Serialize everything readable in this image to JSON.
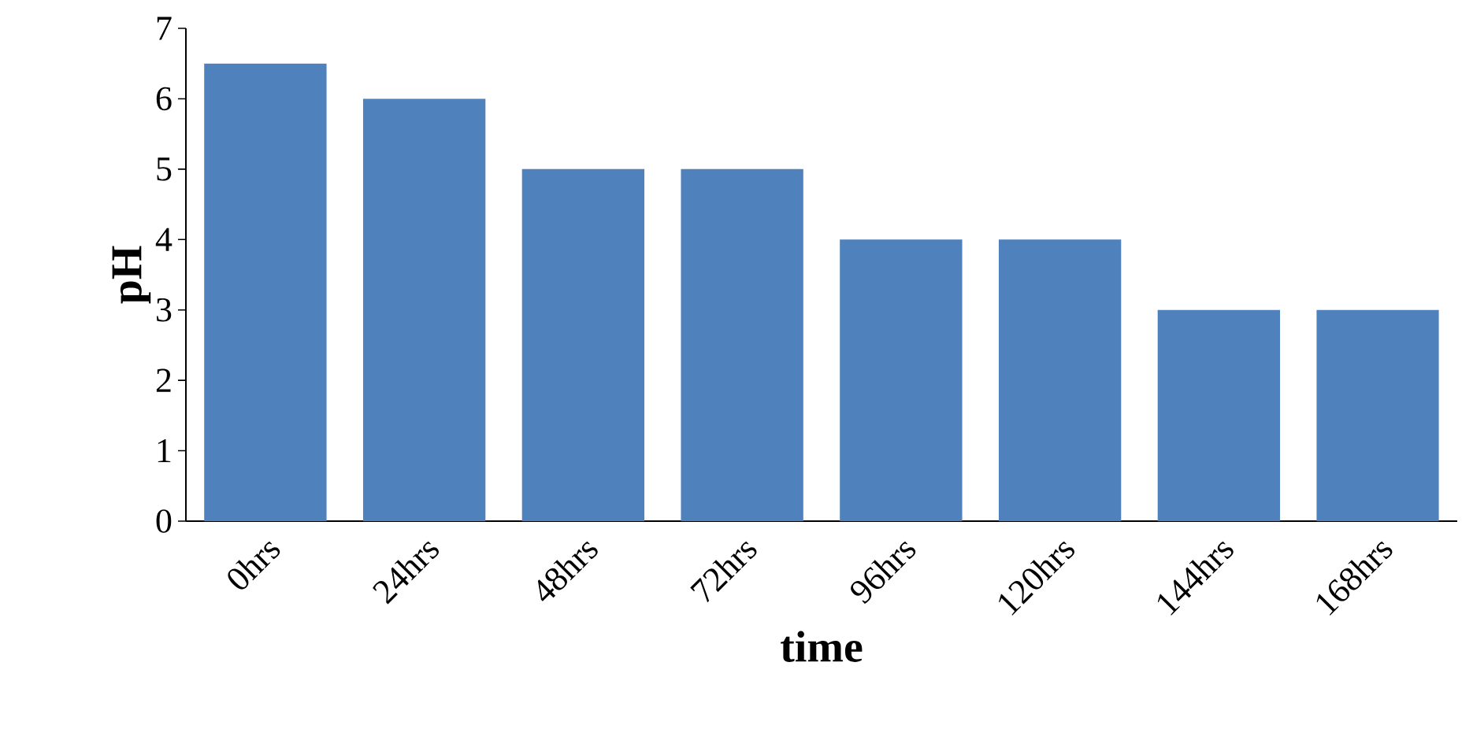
{
  "chart_data": {
    "type": "bar",
    "xlabel": "time",
    "ylabel": "pH",
    "categories": [
      "0hrs",
      "24hrs",
      "48hrs",
      "72hrs",
      "96hrs",
      "120hrs",
      "144hrs",
      "168hrs"
    ],
    "values": [
      6.5,
      6,
      5,
      5,
      4,
      4,
      3,
      3
    ],
    "color": "#4f81bd",
    "ylim": [
      0,
      7
    ],
    "yticks": [
      0,
      1,
      2,
      3,
      4,
      5,
      6,
      7
    ],
    "grid": false
  }
}
